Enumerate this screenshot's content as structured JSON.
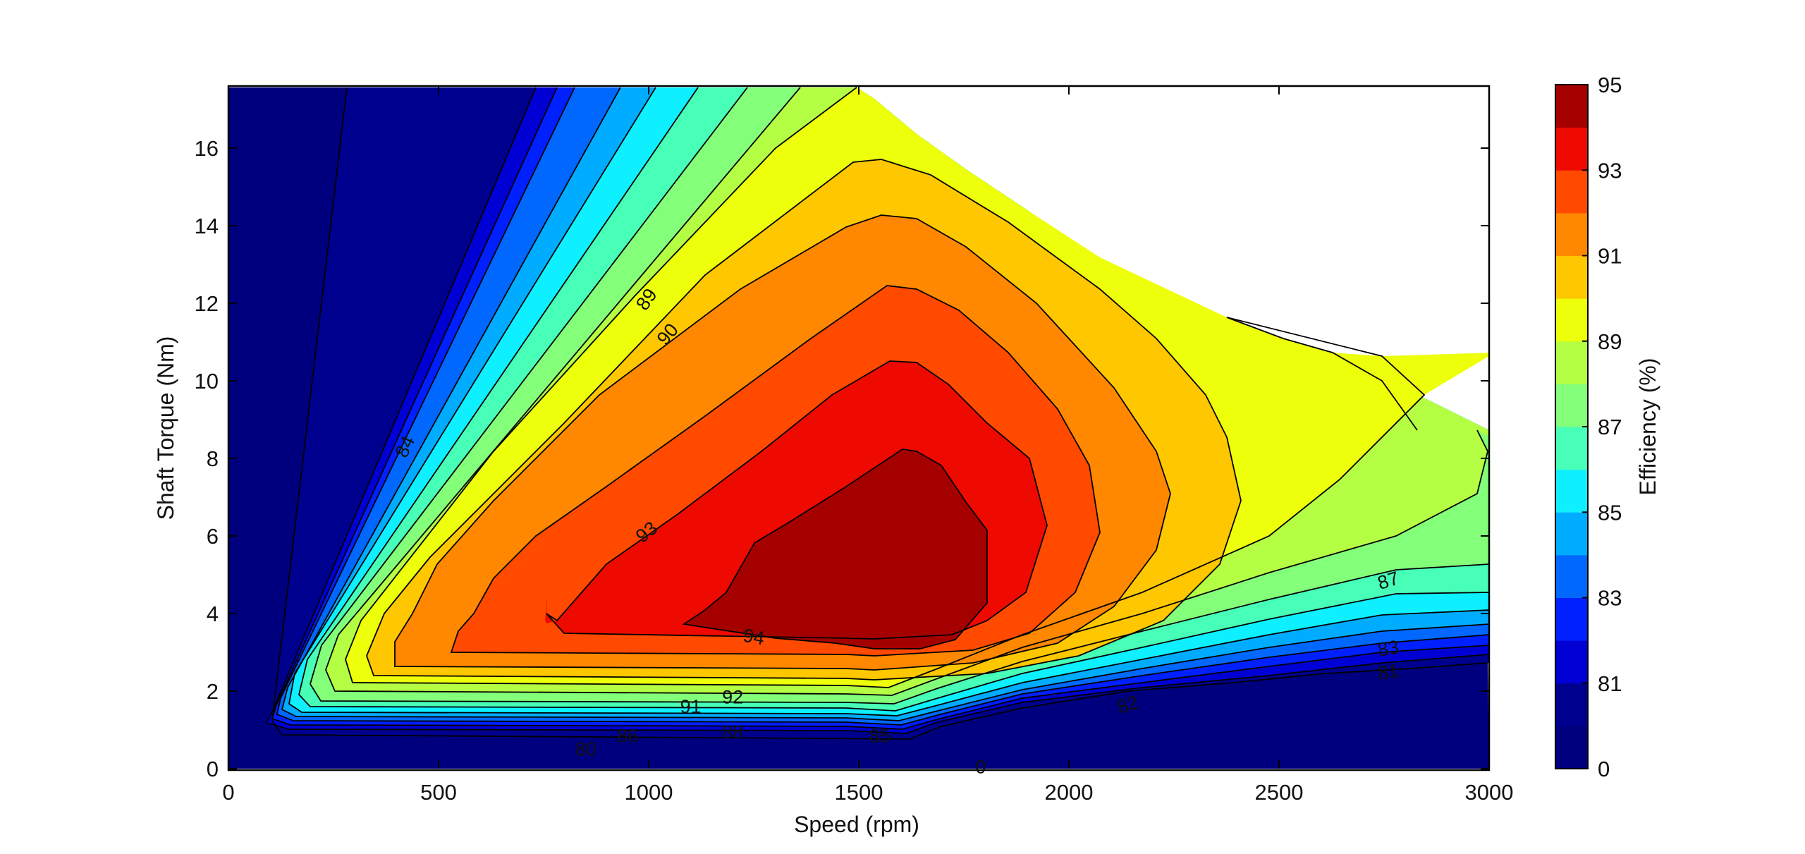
{
  "chart_data": {
    "type": "contour",
    "xlabel": "Speed  (rpm)",
    "ylabel": "Shaft Torque  (Nm)",
    "xlim": [
      0,
      3000
    ],
    "ylim": [
      0,
      17.6
    ],
    "xticks": [
      0,
      500,
      1000,
      1500,
      2000,
      2500,
      3000
    ],
    "yticks": [
      0,
      2,
      4,
      6,
      8,
      10,
      12,
      14,
      16
    ],
    "colorbar": {
      "label": "Efficiency (%)",
      "tick_labels": [
        "0",
        "81",
        "83",
        "85",
        "87",
        "89",
        "91",
        "93",
        "95"
      ],
      "levels": [
        "0",
        "80",
        "81",
        "82",
        "83",
        "84",
        "85",
        "86",
        "87",
        "88",
        "89",
        "90",
        "91",
        "92",
        "93",
        "94",
        "95"
      ],
      "colors": [
        "#00007f",
        "#00008f",
        "#0000d4",
        "#0020ff",
        "#0068ff",
        "#00acff",
        "#0ef0ff",
        "#47ffb7",
        "#83ff7a",
        "#b4ff43",
        "#edff0a",
        "#ffc700",
        "#ff8800",
        "#ff4a00",
        "#ee0a00",
        "#a50000"
      ]
    },
    "contour_labels": [
      {
        "text": "84",
        "x": 420,
        "y": 8.3,
        "angle": -65
      },
      {
        "text": "89",
        "x": 995,
        "y": 12.1,
        "angle": -55
      },
      {
        "text": "90",
        "x": 1045,
        "y": 11.2,
        "angle": -50
      },
      {
        "text": "93",
        "x": 995,
        "y": 6.1,
        "angle": -38
      },
      {
        "text": "94",
        "x": 1250,
        "y": 3.4,
        "angle": 10
      },
      {
        "text": "91",
        "x": 1100,
        "y": 1.6,
        "angle": 0
      },
      {
        "text": "92",
        "x": 1200,
        "y": 1.85,
        "angle": 0
      },
      {
        "text": "86",
        "x": 950,
        "y": 0.85,
        "angle": 0
      },
      {
        "text": "88",
        "x": 1200,
        "y": 0.95,
        "angle": 0
      },
      {
        "text": "85",
        "x": 1550,
        "y": 0.85,
        "angle": 0
      },
      {
        "text": "80",
        "x": 850,
        "y": 0.5,
        "angle": 0
      },
      {
        "text": "0",
        "x": 1790,
        "y": 0.05,
        "angle": 0
      },
      {
        "text": "82",
        "x": 2140,
        "y": 1.65,
        "angle": -18
      },
      {
        "text": "87",
        "x": 2760,
        "y": 4.85,
        "angle": -17
      },
      {
        "text": "83",
        "x": 2760,
        "y": 3.1,
        "angle": -10
      },
      {
        "text": "81",
        "x": 2760,
        "y": 2.5,
        "angle": -8
      }
    ]
  }
}
